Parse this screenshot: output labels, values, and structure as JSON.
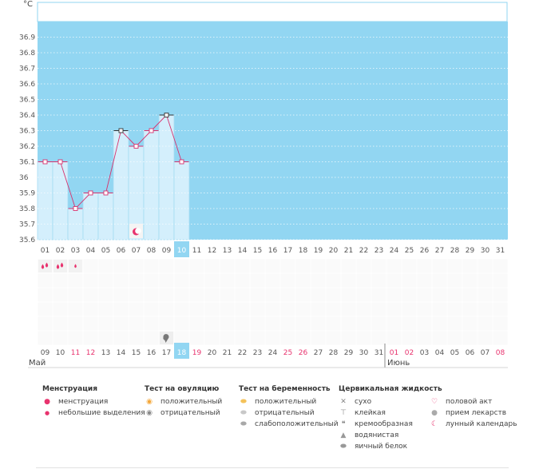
{
  "chart_data": {
    "type": "line",
    "ylabel": "°C",
    "ylim": [
      35.6,
      37.0
    ],
    "y_ticks": [
      "35.6",
      "35.7",
      "35.8",
      "35.9",
      "36",
      "36.1",
      "36.2",
      "36.3",
      "36.4",
      "36.5",
      "36.6",
      "36.7",
      "36.8",
      "36.9"
    ],
    "day_numbers": [
      "01",
      "02",
      "03",
      "04",
      "05",
      "06",
      "07",
      "08",
      "09",
      "10",
      "11",
      "12",
      "13",
      "14",
      "15",
      "16",
      "17",
      "18",
      "19",
      "20",
      "21",
      "22",
      "23",
      "24",
      "25",
      "26",
      "27",
      "28",
      "29",
      "30",
      "31"
    ],
    "selected_day": "10",
    "temperatures": [
      36.1,
      36.1,
      35.8,
      35.9,
      35.9,
      36.3,
      36.2,
      36.3,
      36.4,
      36.1
    ],
    "marked_high_days": [
      6,
      9
    ],
    "menstruation_days": [
      1,
      2
    ],
    "spotting_days": [
      3
    ],
    "moon_day": 7,
    "cervical_day": 9,
    "calendar_dates": [
      "09",
      "10",
      "11",
      "12",
      "13",
      "14",
      "15",
      "16",
      "17",
      "18",
      "19",
      "20",
      "21",
      "22",
      "23",
      "24",
      "25",
      "26",
      "27",
      "28",
      "29",
      "30",
      "31",
      "01",
      "02",
      "03",
      "04",
      "05",
      "06",
      "07",
      "08"
    ],
    "holiday_dates": [
      "11",
      "12",
      "19",
      "25",
      "26",
      "01",
      "02",
      "08"
    ],
    "today_date": "18",
    "month_labels": [
      "Май",
      "Июнь"
    ],
    "colors": {
      "plot_bg": "#92d6f2",
      "bar_fill": "#d4effc",
      "line": "#d8336e",
      "accent_pink": "#e8336e",
      "selected_bg": "#92d6f2"
    }
  },
  "legend": [
    {
      "title": "Менструация",
      "items": [
        {
          "icon": "drops-icon",
          "label": "менструация"
        },
        {
          "icon": "drop-icon",
          "label": "небольшие выделения"
        }
      ]
    },
    {
      "title": "Тест на овуляцию",
      "items": [
        {
          "icon": "positive-circle-icon",
          "label": "положительный"
        },
        {
          "icon": "negative-circle-icon",
          "label": "отрицательный"
        }
      ]
    },
    {
      "title": "Тест на беременность",
      "items": [
        {
          "icon": "positive-egg-icon",
          "label": "положительный"
        },
        {
          "icon": "negative-egg-icon",
          "label": "отрицательный"
        },
        {
          "icon": "weak-egg-icon",
          "label": "слабоположительный"
        }
      ]
    },
    {
      "title": "Цервикальная жидкость",
      "items": [
        {
          "icon": "dry-icon",
          "label": "сухо"
        },
        {
          "icon": "sticky-icon",
          "label": "клейкая"
        },
        {
          "icon": "creamy-icon",
          "label": "кремообразная"
        },
        {
          "icon": "watery-icon",
          "label": "водянистая"
        },
        {
          "icon": "egg-white-icon",
          "label": "яичный белок"
        }
      ]
    },
    {
      "title": "",
      "items": [
        {
          "icon": "heart-icon",
          "label": "половой акт"
        },
        {
          "icon": "pill-icon",
          "label": "прием лекарств"
        },
        {
          "icon": "moon-icon",
          "label": "лунный календарь"
        }
      ]
    }
  ]
}
